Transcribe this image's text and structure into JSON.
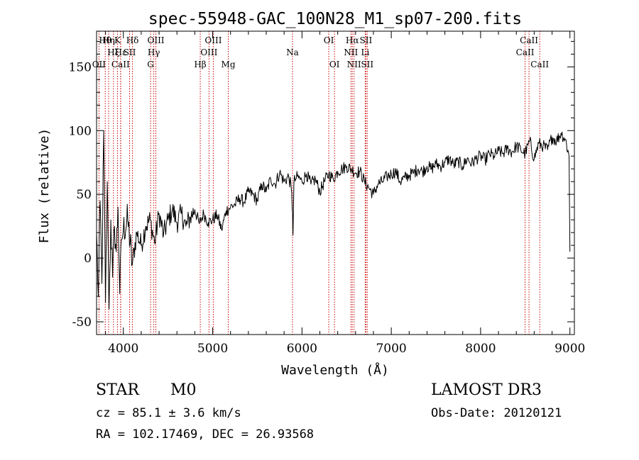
{
  "chart_data": {
    "type": "line",
    "title": "spec-55948-GAC_100N28_M1_sp07-200.fits",
    "xlabel": "Wavelength (Å)",
    "ylabel": "Flux (relative)",
    "xlim": [
      3700,
      9050
    ],
    "ylim": [
      -60,
      178
    ],
    "xticks": [
      4000,
      5000,
      6000,
      7000,
      8000,
      9000
    ],
    "yticks": [
      -50,
      0,
      50,
      100,
      150
    ],
    "grid": false,
    "series": [
      {
        "name": "flux",
        "x": [
          3700,
          3720,
          3740,
          3760,
          3780,
          3800,
          3820,
          3840,
          3860,
          3880,
          3900,
          3920,
          3940,
          3960,
          3980,
          4000,
          4050,
          4100,
          4150,
          4200,
          4250,
          4300,
          4350,
          4400,
          4450,
          4500,
          4550,
          4600,
          4650,
          4700,
          4750,
          4800,
          4850,
          4900,
          4950,
          5000,
          5050,
          5100,
          5150,
          5200,
          5250,
          5300,
          5350,
          5400,
          5450,
          5500,
          5550,
          5600,
          5650,
          5700,
          5750,
          5800,
          5850,
          5880,
          5895,
          5900,
          5910,
          5930,
          5950,
          6000,
          6050,
          6100,
          6150,
          6200,
          6250,
          6300,
          6350,
          6400,
          6450,
          6500,
          6550,
          6600,
          6650,
          6700,
          6750,
          6800,
          6850,
          6900,
          6950,
          7000,
          7050,
          7100,
          7150,
          7200,
          7250,
          7300,
          7350,
          7400,
          7450,
          7500,
          7550,
          7600,
          7650,
          7700,
          7750,
          7800,
          7850,
          7900,
          7950,
          8000,
          8050,
          8100,
          8150,
          8200,
          8250,
          8300,
          8350,
          8400,
          8450,
          8500,
          8550,
          8600,
          8650,
          8700,
          8750,
          8800,
          8850,
          8900,
          8950,
          8990,
          9000
        ],
        "values": [
          20,
          -30,
          45,
          -20,
          100,
          -35,
          60,
          -40,
          30,
          -15,
          25,
          5,
          40,
          -28,
          15,
          22,
          30,
          -5,
          20,
          10,
          25,
          30,
          12,
          35,
          18,
          30,
          38,
          28,
          35,
          25,
          32,
          38,
          27,
          35,
          28,
          30,
          34,
          22,
          37,
          40,
          42,
          47,
          44,
          52,
          50,
          45,
          58,
          52,
          62,
          58,
          67,
          60,
          64,
          55,
          35,
          18,
          60,
          62,
          64,
          60,
          66,
          58,
          62,
          52,
          60,
          66,
          62,
          68,
          70,
          72,
          70,
          67,
          68,
          60,
          55,
          50,
          58,
          60,
          64,
          66,
          68,
          60,
          63,
          65,
          67,
          70,
          68,
          72,
          70,
          74,
          72,
          75,
          78,
          73,
          76,
          72,
          78,
          74,
          78,
          80,
          77,
          82,
          80,
          84,
          82,
          86,
          83,
          88,
          85,
          82,
          92,
          78,
          90,
          88,
          85,
          95,
          92,
          98,
          93,
          80,
          5
        ]
      }
    ],
    "line_markers": [
      {
        "name": "OII",
        "wavelength": 3727,
        "row": 3
      },
      {
        "name": "Hθ",
        "wavelength": 3797,
        "row": 1
      },
      {
        "name": "Hη",
        "wavelength": 3835,
        "row": 1
      },
      {
        "name": "Hξ",
        "wavelength": 3889,
        "row": 2
      },
      {
        "name": "K",
        "wavelength": 3934,
        "row": 1
      },
      {
        "name": "Hε",
        "wavelength": 3970,
        "row": 2
      },
      {
        "name": "CaII",
        "wavelength": 3969,
        "row": 3
      },
      {
        "name": "SII",
        "wavelength": 4070,
        "row": 2
      },
      {
        "name": "Hδ",
        "wavelength": 4102,
        "row": 1
      },
      {
        "name": "OIII",
        "wavelength": 4364,
        "row": 1
      },
      {
        "name": "Hγ",
        "wavelength": 4341,
        "row": 2
      },
      {
        "name": "G",
        "wavelength": 4305,
        "row": 3
      },
      {
        "name": "Hβ",
        "wavelength": 4861,
        "row": 3
      },
      {
        "name": "OIII",
        "wavelength": 4959,
        "row": 2
      },
      {
        "name": "OIII",
        "wavelength": 5007,
        "row": 1
      },
      {
        "name": "Mg",
        "wavelength": 5175,
        "row": 3
      },
      {
        "name": "Na",
        "wavelength": 5894,
        "row": 2
      },
      {
        "name": "OI",
        "wavelength": 6300,
        "row": 1
      },
      {
        "name": "OI",
        "wavelength": 6364,
        "row": 3
      },
      {
        "name": "NII",
        "wavelength": 6548,
        "row": 2
      },
      {
        "name": "Hα",
        "wavelength": 6563,
        "row": 1
      },
      {
        "name": "NII",
        "wavelength": 6583,
        "row": 3
      },
      {
        "name": "SII",
        "wavelength": 6716,
        "row": 1
      },
      {
        "name": "Li",
        "wavelength": 6708,
        "row": 2
      },
      {
        "name": "SII",
        "wavelength": 6731,
        "row": 3
      },
      {
        "name": "CaII",
        "wavelength": 8498,
        "row": 2
      },
      {
        "name": "CaII",
        "wavelength": 8542,
        "row": 1
      },
      {
        "name": "CaII",
        "wavelength": 8662,
        "row": 3
      }
    ]
  },
  "info": {
    "class": "STAR",
    "subclass": "M0",
    "redshift": "cz =  85.1 ± 3.6 km/s",
    "coords": "RA = 102.17469, DEC =  26.93568",
    "survey": "LAMOST DR3",
    "obs_date": "Obs-Date: 20120121"
  },
  "colors": {
    "spectrum": "#000000",
    "marker": "#cc0000",
    "axes": "#000000"
  }
}
